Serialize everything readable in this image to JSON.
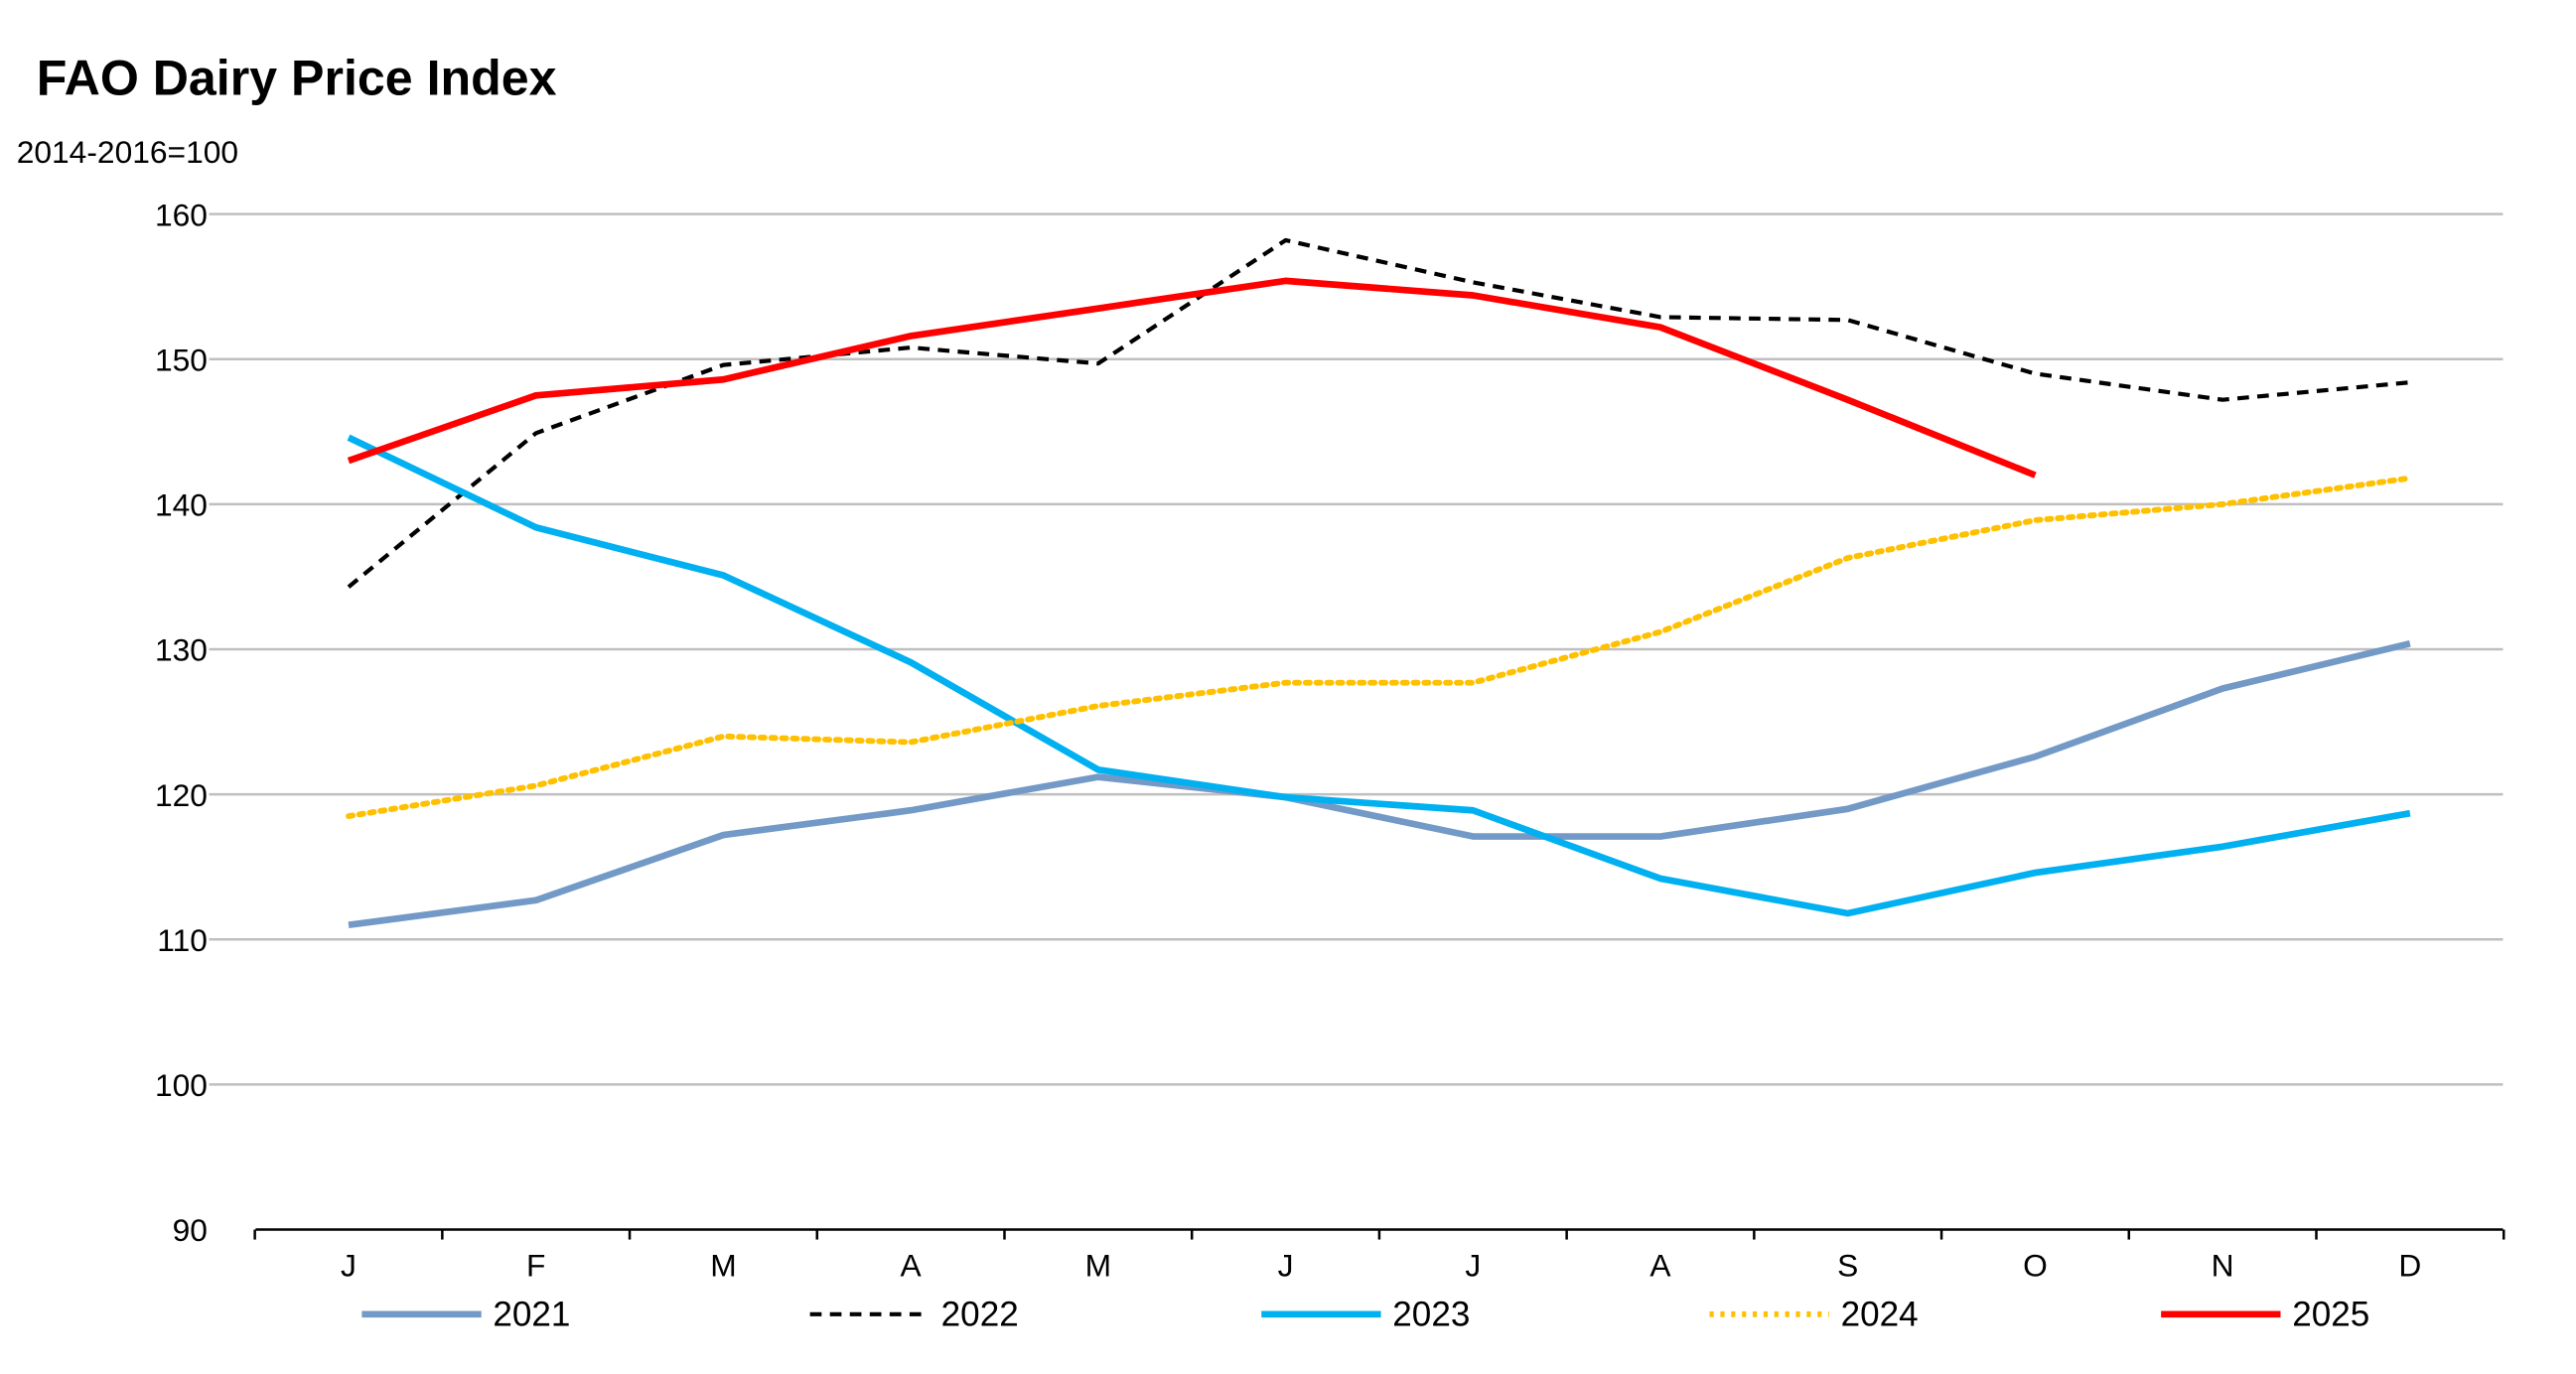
{
  "chart_data": {
    "type": "line",
    "title": "FAO Dairy Price Index",
    "subtitle": "2014-2016=100",
    "xlabel": "",
    "ylabel": "",
    "categories": [
      "J",
      "F",
      "M",
      "A",
      "M",
      "J",
      "J",
      "A",
      "S",
      "O",
      "N",
      "D"
    ],
    "ylim": [
      90,
      160
    ],
    "yticks": [
      90,
      100,
      110,
      120,
      130,
      140,
      150,
      160
    ],
    "grid": true,
    "legend_position": "bottom",
    "series": [
      {
        "name": "2021",
        "color": "#7399c6",
        "style": "solid",
        "values": [
          111.0,
          112.7,
          117.2,
          118.9,
          121.2,
          119.8,
          117.1,
          117.1,
          119.0,
          122.6,
          127.3,
          130.4
        ]
      },
      {
        "name": "2022",
        "color": "#000000",
        "style": "dashed",
        "values": [
          134.3,
          144.9,
          149.6,
          150.8,
          149.7,
          158.2,
          155.3,
          152.9,
          152.7,
          149.0,
          147.2,
          148.4
        ]
      },
      {
        "name": "2023",
        "color": "#00b0f0",
        "style": "solid",
        "values": [
          144.6,
          138.4,
          135.1,
          129.1,
          121.7,
          119.8,
          118.9,
          114.2,
          111.8,
          114.6,
          116.4,
          118.7
        ]
      },
      {
        "name": "2024",
        "color": "#ffc000",
        "style": "dotted",
        "values": [
          118.5,
          120.6,
          124.0,
          123.6,
          126.1,
          127.7,
          127.7,
          131.2,
          136.3,
          138.9,
          140.0,
          141.8
        ]
      },
      {
        "name": "2025",
        "color": "#ff0000",
        "style": "solid",
        "values": [
          143.0,
          147.5,
          148.6,
          151.6,
          153.5,
          155.4,
          154.4,
          152.2,
          147.2,
          142.0,
          null,
          null
        ]
      }
    ]
  }
}
